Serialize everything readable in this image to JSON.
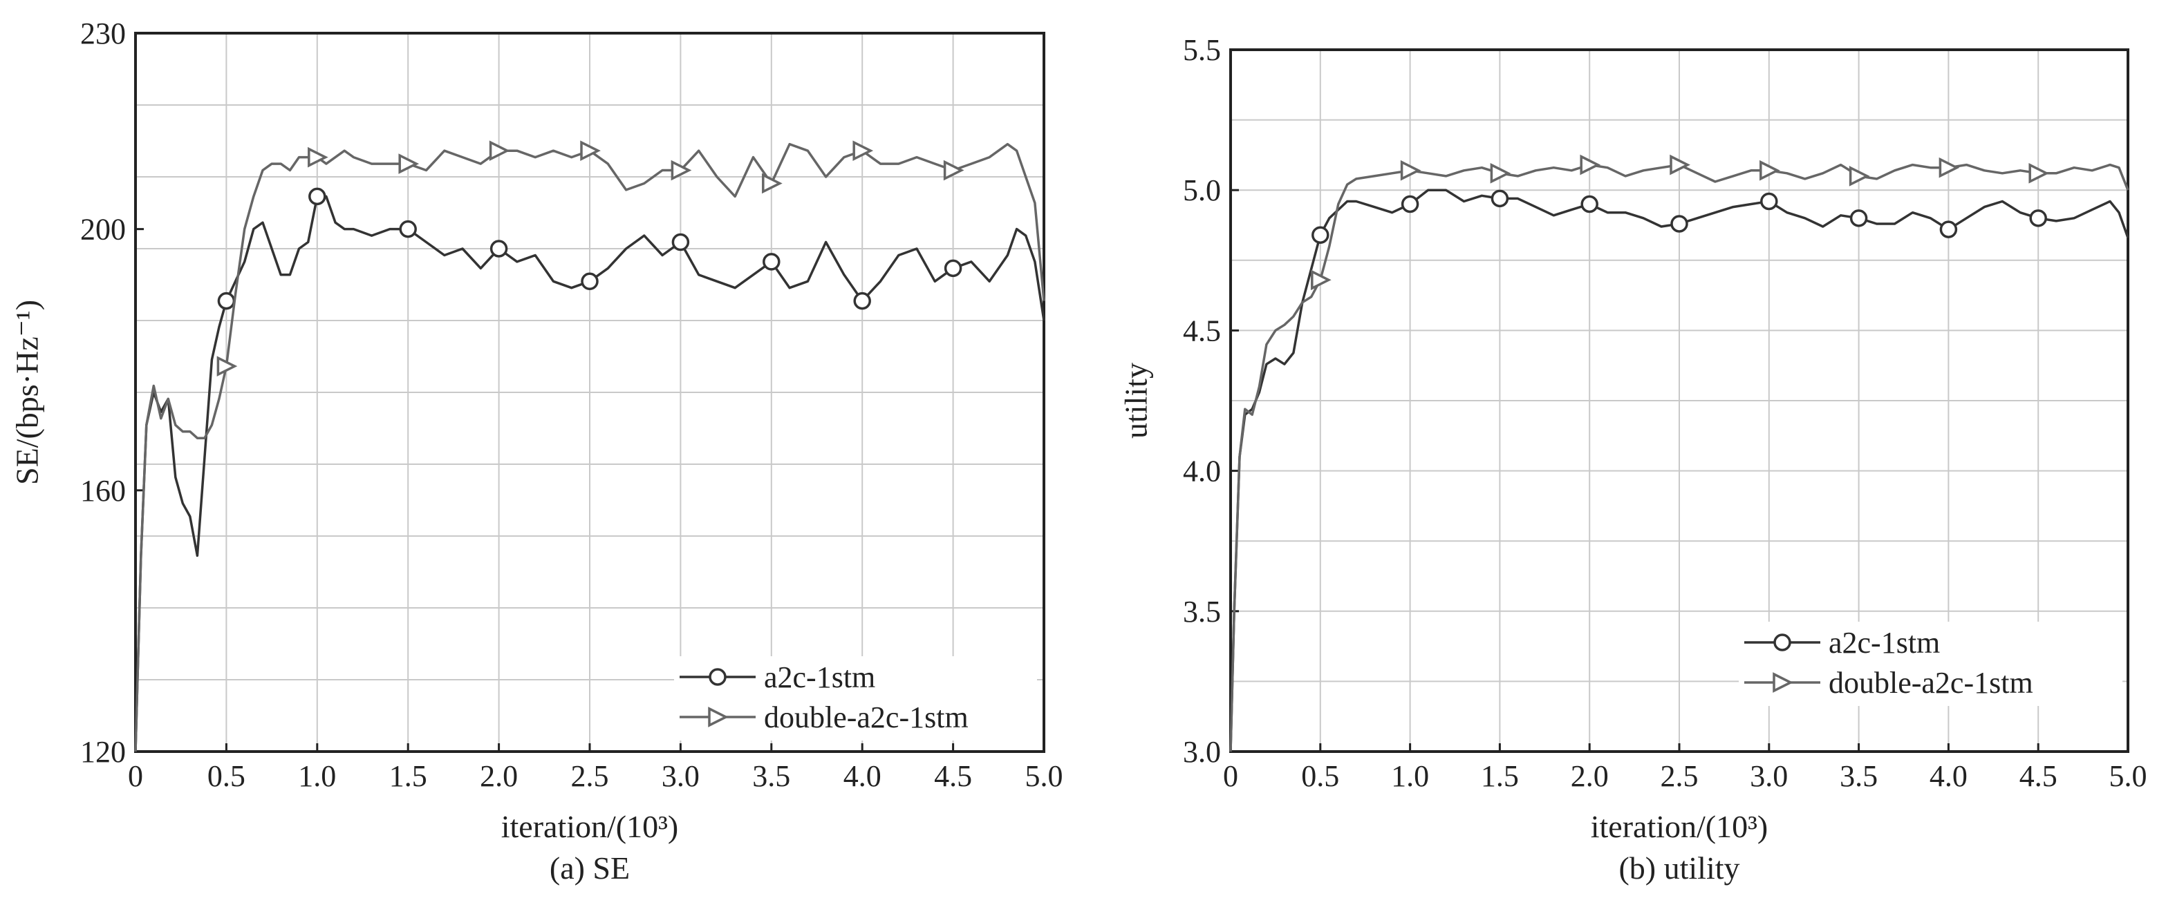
{
  "figure": {
    "captions": [
      "(a) SE",
      "(b) utility"
    ]
  },
  "chart_data": [
    {
      "type": "line",
      "caption": "(a) SE",
      "xlabel": "iteration/(10³)",
      "ylabel": "SE/(bps·Hz⁻¹)",
      "xlim": [
        0,
        5.0
      ],
      "ylim": [
        120,
        230
      ],
      "xticks": [
        0,
        0.5,
        1.0,
        1.5,
        2.0,
        2.5,
        3.0,
        3.5,
        4.0,
        4.5,
        5.0
      ],
      "xtick_labels": [
        "0",
        "0.5",
        "1.0",
        "1.5",
        "2.0",
        "2.5",
        "3.0",
        "3.5",
        "4.0",
        "4.5",
        "5.0"
      ],
      "yticks": [
        120,
        160,
        200,
        230
      ],
      "ytick_labels": [
        "120",
        "160",
        "200",
        "230"
      ],
      "grid": true,
      "legend_position": "bottom-right",
      "series": [
        {
          "name": "a2c-1stm",
          "marker": "circle",
          "color": "#333333",
          "x": [
            0,
            0.03,
            0.06,
            0.1,
            0.14,
            0.18,
            0.22,
            0.26,
            0.3,
            0.34,
            0.38,
            0.42,
            0.46,
            0.5,
            0.55,
            0.6,
            0.65,
            0.7,
            0.75,
            0.8,
            0.85,
            0.9,
            0.95,
            1.0,
            1.05,
            1.1,
            1.15,
            1.2,
            1.3,
            1.4,
            1.5,
            1.6,
            1.7,
            1.8,
            1.9,
            2.0,
            2.1,
            2.2,
            2.3,
            2.4,
            2.5,
            2.6,
            2.7,
            2.8,
            2.9,
            3.0,
            3.1,
            3.2,
            3.3,
            3.4,
            3.5,
            3.6,
            3.7,
            3.8,
            3.9,
            4.0,
            4.1,
            4.2,
            4.3,
            4.4,
            4.5,
            4.6,
            4.7,
            4.8,
            4.85,
            4.9,
            4.95,
            5.0
          ],
          "y": [
            120,
            150,
            170,
            175,
            172,
            174,
            162,
            158,
            156,
            150,
            165,
            180,
            185,
            189,
            192,
            195,
            200,
            201,
            197,
            193,
            193,
            197,
            198,
            205,
            205,
            201,
            200,
            200,
            199,
            200,
            200,
            198,
            196,
            197,
            194,
            197,
            195,
            196,
            192,
            191,
            192,
            194,
            197,
            199,
            196,
            198,
            193,
            192,
            191,
            193,
            195,
            191,
            192,
            198,
            193,
            189,
            192,
            196,
            197,
            192,
            194,
            195,
            192,
            196,
            200,
            199,
            195,
            186
          ]
        },
        {
          "name": "double-a2c-1stm",
          "marker": "triangle-right",
          "color": "#666666",
          "x": [
            0,
            0.03,
            0.06,
            0.1,
            0.14,
            0.18,
            0.22,
            0.26,
            0.3,
            0.34,
            0.38,
            0.42,
            0.46,
            0.5,
            0.55,
            0.6,
            0.65,
            0.7,
            0.75,
            0.8,
            0.85,
            0.9,
            0.95,
            1.0,
            1.05,
            1.1,
            1.15,
            1.2,
            1.3,
            1.4,
            1.5,
            1.6,
            1.7,
            1.8,
            1.9,
            2.0,
            2.1,
            2.2,
            2.3,
            2.4,
            2.5,
            2.6,
            2.7,
            2.8,
            2.9,
            3.0,
            3.1,
            3.2,
            3.3,
            3.4,
            3.5,
            3.6,
            3.7,
            3.8,
            3.9,
            4.0,
            4.1,
            4.2,
            4.3,
            4.4,
            4.5,
            4.6,
            4.7,
            4.8,
            4.85,
            4.9,
            4.95,
            5.0
          ],
          "y": [
            120,
            150,
            170,
            176,
            171,
            174,
            170,
            169,
            169,
            168,
            168,
            170,
            174,
            179,
            190,
            200,
            205,
            209,
            210,
            210,
            209,
            211,
            211,
            211,
            210,
            211,
            212,
            211,
            210,
            210,
            210,
            209,
            212,
            211,
            210,
            212,
            212,
            211,
            212,
            211,
            212,
            210,
            206,
            207,
            209,
            209,
            212,
            208,
            205,
            211,
            207,
            213,
            212,
            208,
            211,
            212,
            210,
            210,
            211,
            210,
            209,
            210,
            211,
            213,
            212,
            208,
            204,
            189
          ]
        }
      ]
    },
    {
      "type": "line",
      "caption": "(b) utility",
      "xlabel": "iteration/(10³)",
      "ylabel": "utility",
      "xlim": [
        0,
        5.0
      ],
      "ylim": [
        3.0,
        5.5
      ],
      "xticks": [
        0,
        0.5,
        1.0,
        1.5,
        2.0,
        2.5,
        3.0,
        3.5,
        4.0,
        4.5,
        5.0
      ],
      "xtick_labels": [
        "0",
        "0.5",
        "1.0",
        "1.5",
        "2.0",
        "2.5",
        "3.0",
        "3.5",
        "4.0",
        "4.5",
        "5.0"
      ],
      "yticks": [
        3.0,
        3.5,
        4.0,
        4.5,
        5.0,
        5.5
      ],
      "ytick_labels": [
        "3.0",
        "3.5",
        "4.0",
        "4.5",
        "5.0",
        "5.5"
      ],
      "grid": true,
      "legend_position": "bottom-right",
      "series": [
        {
          "name": "a2c-1stm",
          "marker": "circle",
          "color": "#333333",
          "x": [
            0,
            0.02,
            0.05,
            0.08,
            0.12,
            0.16,
            0.2,
            0.25,
            0.3,
            0.35,
            0.4,
            0.45,
            0.5,
            0.55,
            0.6,
            0.65,
            0.7,
            0.8,
            0.9,
            1.0,
            1.1,
            1.2,
            1.3,
            1.4,
            1.5,
            1.6,
            1.7,
            1.8,
            1.9,
            2.0,
            2.1,
            2.2,
            2.3,
            2.4,
            2.5,
            2.6,
            2.7,
            2.8,
            2.9,
            3.0,
            3.1,
            3.2,
            3.3,
            3.4,
            3.5,
            3.6,
            3.7,
            3.8,
            3.9,
            4.0,
            4.1,
            4.2,
            4.3,
            4.4,
            4.5,
            4.6,
            4.7,
            4.8,
            4.9,
            4.95,
            5.0
          ],
          "y": [
            3.0,
            3.5,
            4.05,
            4.2,
            4.22,
            4.28,
            4.38,
            4.4,
            4.38,
            4.42,
            4.6,
            4.72,
            4.84,
            4.9,
            4.93,
            4.96,
            4.96,
            4.94,
            4.92,
            4.95,
            5.0,
            5.0,
            4.96,
            4.98,
            4.97,
            4.97,
            4.94,
            4.91,
            4.93,
            4.95,
            4.92,
            4.92,
            4.9,
            4.87,
            4.88,
            4.9,
            4.92,
            4.94,
            4.95,
            4.96,
            4.92,
            4.9,
            4.87,
            4.91,
            4.9,
            4.88,
            4.88,
            4.92,
            4.9,
            4.86,
            4.9,
            4.94,
            4.96,
            4.92,
            4.9,
            4.89,
            4.9,
            4.93,
            4.96,
            4.92,
            4.83
          ]
        },
        {
          "name": "double-a2c-1stm",
          "marker": "triangle-right",
          "color": "#666666",
          "x": [
            0,
            0.02,
            0.05,
            0.08,
            0.12,
            0.16,
            0.2,
            0.25,
            0.3,
            0.35,
            0.4,
            0.45,
            0.5,
            0.55,
            0.6,
            0.65,
            0.7,
            0.8,
            0.9,
            1.0,
            1.1,
            1.2,
            1.3,
            1.4,
            1.5,
            1.6,
            1.7,
            1.8,
            1.9,
            2.0,
            2.1,
            2.2,
            2.3,
            2.4,
            2.5,
            2.6,
            2.7,
            2.8,
            2.9,
            3.0,
            3.1,
            3.2,
            3.3,
            3.4,
            3.5,
            3.6,
            3.7,
            3.8,
            3.9,
            4.0,
            4.1,
            4.2,
            4.3,
            4.4,
            4.5,
            4.6,
            4.7,
            4.8,
            4.9,
            4.95,
            5.0
          ],
          "y": [
            3.0,
            3.5,
            4.05,
            4.22,
            4.2,
            4.3,
            4.45,
            4.5,
            4.52,
            4.55,
            4.6,
            4.62,
            4.68,
            4.8,
            4.95,
            5.02,
            5.04,
            5.05,
            5.06,
            5.07,
            5.06,
            5.05,
            5.07,
            5.08,
            5.06,
            5.05,
            5.07,
            5.08,
            5.07,
            5.09,
            5.08,
            5.05,
            5.07,
            5.08,
            5.09,
            5.06,
            5.03,
            5.05,
            5.07,
            5.07,
            5.06,
            5.04,
            5.06,
            5.09,
            5.05,
            5.04,
            5.07,
            5.09,
            5.08,
            5.08,
            5.09,
            5.07,
            5.06,
            5.07,
            5.06,
            5.06,
            5.08,
            5.07,
            5.09,
            5.08,
            5.0
          ]
        }
      ]
    }
  ]
}
